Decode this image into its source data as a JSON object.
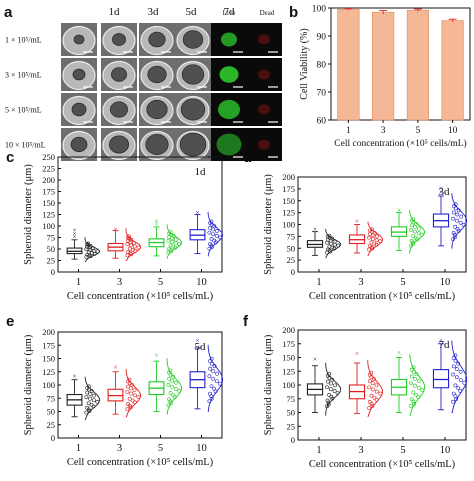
{
  "panel_letters": [
    "a",
    "b",
    "c",
    "d",
    "e",
    "f"
  ],
  "panel_a": {
    "day_labels": [
      "1d",
      "3d",
      "5d",
      "7d"
    ],
    "stain_labels": [
      "Live",
      "Dead"
    ],
    "row_labels": [
      "1 × 10⁵/mL",
      "3 × 10⁵/mL",
      "5 × 10⁵/mL",
      "10 × 10⁵/mL"
    ],
    "live_intensity": [
      0.7,
      0.85,
      0.75,
      0.55
    ],
    "colors": {
      "live": "#2fd62f",
      "dead": "#c81818",
      "brightfield": "#8a8a8a"
    }
  },
  "chart_data": [
    {
      "type": "bar",
      "panel": "b",
      "categories": [
        "1",
        "3",
        "5",
        "10"
      ],
      "values": [
        99.5,
        98.5,
        99.2,
        95.5
      ],
      "errors": [
        0.3,
        0.6,
        0.4,
        0.5
      ],
      "ylabel": "Cell Viability (%)",
      "xlabel": "Cell concentration (×10⁵ cells/mL)",
      "ylim": [
        60,
        100
      ],
      "yticks": [
        60,
        70,
        80,
        90,
        100
      ],
      "bar_color": "#f4b896",
      "error_color": "#e03030"
    },
    {
      "type": "box",
      "panel": "c",
      "annotation": "1d",
      "categories": [
        "1",
        "3",
        "5",
        "10"
      ],
      "series_colors": [
        "#222222",
        "#e02020",
        "#22cc22",
        "#2222cc"
      ],
      "ylabel": "Spheroid diameter (μm)",
      "xlabel": "Cell concentration (×10⁵ cells/mL)",
      "ylim": [
        0,
        250
      ],
      "yticks": [
        0,
        25,
        50,
        75,
        100,
        125,
        150,
        175,
        200,
        225,
        250
      ],
      "boxes": [
        {
          "min": 28,
          "q1": 40,
          "median": 45,
          "q3": 52,
          "max": 70,
          "outliers": [
            78,
            85,
            92
          ]
        },
        {
          "min": 30,
          "q1": 46,
          "median": 54,
          "q3": 62,
          "max": 90,
          "outliers": [
            95
          ]
        },
        {
          "min": 35,
          "q1": 55,
          "median": 64,
          "q3": 72,
          "max": 98,
          "outliers": [
            105,
            112
          ]
        },
        {
          "min": 40,
          "q1": 70,
          "median": 80,
          "q3": 92,
          "max": 125,
          "outliers": [
            130
          ]
        }
      ]
    },
    {
      "type": "box",
      "panel": "d",
      "annotation": "3d",
      "categories": [
        "1",
        "3",
        "5",
        "10"
      ],
      "series_colors": [
        "#222222",
        "#e02020",
        "#22cc22",
        "#2222cc"
      ],
      "ylabel": "Spheroid diameter (μm)",
      "xlabel": "Cell concentration (×10⁵ cells/mL)",
      "ylim": [
        0,
        200
      ],
      "yticks": [
        0,
        25,
        50,
        75,
        100,
        125,
        150,
        175,
        200
      ],
      "boxes": [
        {
          "min": 35,
          "q1": 52,
          "median": 58,
          "q3": 66,
          "max": 85,
          "outliers": [
            92
          ]
        },
        {
          "min": 40,
          "q1": 60,
          "median": 68,
          "q3": 78,
          "max": 100,
          "outliers": [
            108
          ]
        },
        {
          "min": 45,
          "q1": 75,
          "median": 84,
          "q3": 95,
          "max": 125,
          "outliers": [
            132
          ]
        },
        {
          "min": 55,
          "q1": 95,
          "median": 108,
          "q3": 122,
          "max": 160,
          "outliers": [
            170,
            178
          ]
        }
      ]
    },
    {
      "type": "box",
      "panel": "e",
      "annotation": "5d",
      "categories": [
        "1",
        "3",
        "5",
        "10"
      ],
      "series_colors": [
        "#222222",
        "#e02020",
        "#22cc22",
        "#2222cc"
      ],
      "ylabel": "Spheroid diameter (μm)",
      "xlabel": "Cell concentration (×10⁵ cells/mL)",
      "ylim": [
        0,
        200
      ],
      "yticks": [
        0,
        25,
        50,
        75,
        100,
        125,
        150,
        175,
        200
      ],
      "boxes": [
        {
          "min": 40,
          "q1": 62,
          "median": 72,
          "q3": 82,
          "max": 110,
          "outliers": [
            118
          ]
        },
        {
          "min": 45,
          "q1": 70,
          "median": 80,
          "q3": 92,
          "max": 125,
          "outliers": [
            135
          ]
        },
        {
          "min": 50,
          "q1": 82,
          "median": 94,
          "q3": 106,
          "max": 145,
          "outliers": [
            158
          ]
        },
        {
          "min": 55,
          "q1": 95,
          "median": 110,
          "q3": 125,
          "max": 170,
          "outliers": [
            185
          ]
        }
      ]
    },
    {
      "type": "box",
      "panel": "f",
      "annotation": "7d",
      "categories": [
        "1",
        "3",
        "5",
        "10"
      ],
      "series_colors": [
        "#222222",
        "#e02020",
        "#22cc22",
        "#2222cc"
      ],
      "ylabel": "Spheroid diameter (μm)",
      "xlabel": "Cell concentration (×10⁵ cells/mL)",
      "ylim": [
        0,
        200
      ],
      "yticks": [
        0,
        25,
        50,
        75,
        100,
        125,
        150,
        175,
        200
      ],
      "boxes": [
        {
          "min": 50,
          "q1": 82,
          "median": 92,
          "q3": 102,
          "max": 135,
          "outliers": [
            148
          ]
        },
        {
          "min": 48,
          "q1": 75,
          "median": 88,
          "q3": 100,
          "max": 140,
          "outliers": [
            158
          ]
        },
        {
          "min": 50,
          "q1": 82,
          "median": 96,
          "q3": 110,
          "max": 150,
          "outliers": [
            160
          ]
        },
        {
          "min": 55,
          "q1": 95,
          "median": 110,
          "q3": 128,
          "max": 175,
          "outliers": [
            182
          ]
        }
      ]
    }
  ]
}
